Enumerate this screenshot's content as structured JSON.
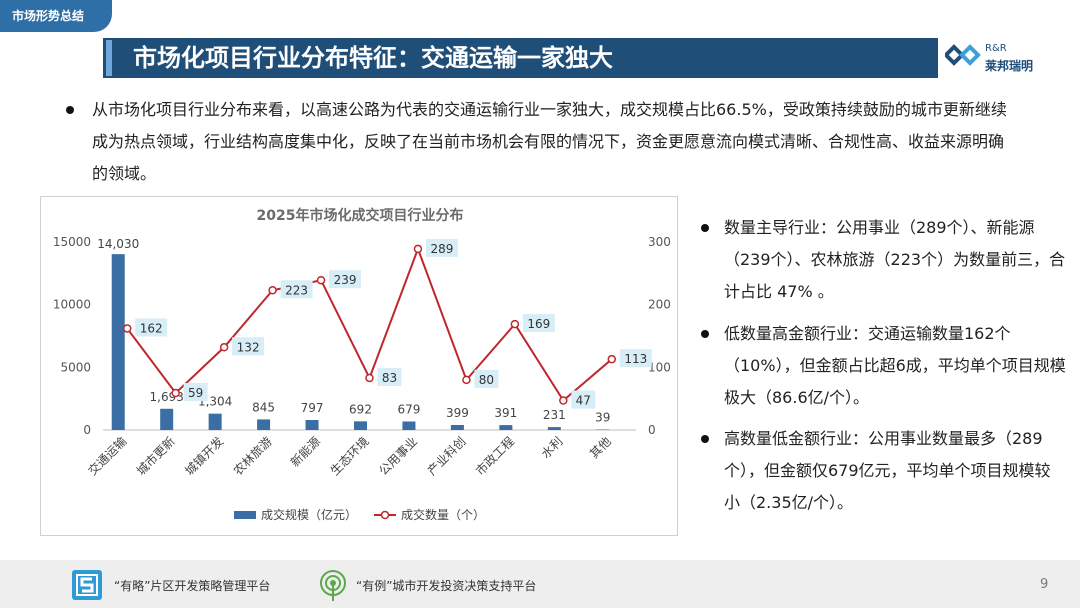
{
  "header": {
    "tag": "市场形势总结",
    "title": "市场化项目行业分布特征：交通运输一家独大",
    "logo_en": "R&R",
    "logo_cn": "莱邦瑞明"
  },
  "intro": "从市场化项目行业分布来看，以高速公路为代表的交通运输行业一家独大，成交规模占比66.5%，受政策持续鼓励的城市更新继续成为热点领域，行业结构高度集中化，反映了在当前市场机会有限的情况下，资金更愿意流向模式清晰、合规性高、收益来源明确的领域。",
  "side": {
    "p1": "数量主导行业：公用事业（289个）、新能源（239个）、农林旅游（223个）为数量前三，合计占比 47% 。",
    "p2": "低数量高金额行业：交通运输数量162个（10%），但金额占比超6成，平均单个项目规模极大（86.6亿/个）。",
    "p3": "高数量低金额行业：公用事业数量最多（289个），但金额仅679亿元，平均单个项目规模较小（2.35亿/个）。"
  },
  "footer": {
    "platform1": "“有略”片区开发策略管理平台",
    "platform2": "“有例”城市开发投资决策支持平台",
    "page": "9"
  },
  "colors": {
    "bar": "#3a6ea5",
    "line": "#c0272d",
    "title_bar": "#1f4e79",
    "label_bg": "#d7eef7"
  },
  "chart_data": {
    "type": "bar",
    "title": "2025年市场化成交项目行业分布",
    "categories": [
      "交通运输",
      "城市更新",
      "城镇开发",
      "农林旅游",
      "新能源",
      "生态环境",
      "公用事业",
      "产业科创",
      "市政工程",
      "水利",
      "其他"
    ],
    "series": [
      {
        "name": "成交规模（亿元）",
        "type": "bar",
        "axis": "left",
        "values": [
          14030,
          1693,
          1304,
          845,
          797,
          692,
          679,
          399,
          391,
          231,
          39
        ],
        "labels": [
          "14,030",
          "1,693",
          "1,304",
          "845",
          "797",
          "692",
          "679",
          "399",
          "391",
          "231",
          "39"
        ]
      },
      {
        "name": "成交数量（个）",
        "type": "line",
        "axis": "right",
        "values": [
          162,
          59,
          132,
          223,
          239,
          83,
          289,
          80,
          169,
          47,
          113
        ],
        "labels": [
          "162",
          "59",
          "132",
          "223",
          "239",
          "83",
          "289",
          "80",
          "169",
          "47",
          "113"
        ]
      }
    ],
    "y_left": {
      "ylim": [
        0,
        15000
      ],
      "ticks": [
        "0",
        "5000",
        "10000",
        "15000"
      ]
    },
    "y_right": {
      "ylim": [
        0,
        300
      ],
      "ticks": [
        "0",
        "100",
        "200",
        "300"
      ]
    },
    "legend_position": "bottom",
    "grid": false
  }
}
